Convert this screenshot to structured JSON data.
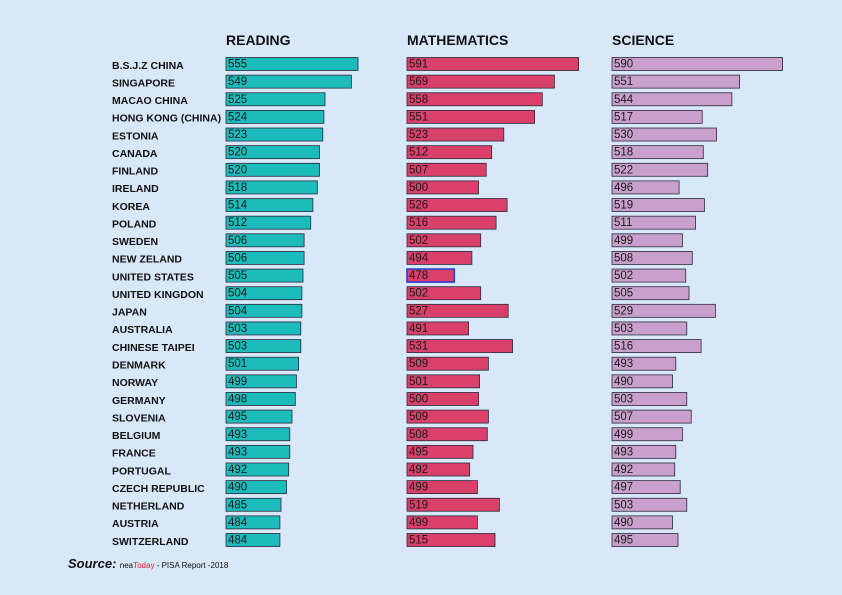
{
  "chart_data": {
    "type": "bar",
    "orientation": "horizontal",
    "categories": [
      "B.S.J.Z CHINA",
      "SINGAPORE",
      "MACAO CHINA",
      "HONG KONG (CHINA)",
      "ESTONIA",
      "CANADA",
      "FINLAND",
      "IRELAND",
      "KOREA",
      "POLAND",
      "SWEDEN",
      "NEW ZELAND",
      "UNITED STATES",
      "UNITED KINGDON",
      "JAPAN",
      "AUSTRALIA",
      "CHINESE TAIPEI",
      "DENMARK",
      "NORWAY",
      "GERMANY",
      "SLOVENIA",
      "BELGIUM",
      "FRANCE",
      "PORTUGAL",
      "CZECH  REPUBLIC",
      "NETHERLAND",
      "AUSTRIA",
      "SWITZERLAND"
    ],
    "series": [
      {
        "name": "READING",
        "color": "#1dbcbc",
        "values": [
          555,
          549,
          525,
          524,
          523,
          520,
          520,
          518,
          514,
          512,
          506,
          506,
          505,
          504,
          504,
          503,
          503,
          501,
          499,
          498,
          495,
          493,
          493,
          492,
          490,
          485,
          484,
          484
        ]
      },
      {
        "name": "MATHEMATICS",
        "color": "#d9406a",
        "values": [
          591,
          569,
          558,
          551,
          523,
          512,
          507,
          500,
          526,
          516,
          502,
          494,
          478,
          502,
          527,
          491,
          531,
          509,
          501,
          500,
          509,
          508,
          495,
          492,
          499,
          519,
          499,
          515
        ],
        "highlight_index": 12
      },
      {
        "name": "SCIENCE",
        "color": "#c9a0cc",
        "values": [
          590,
          551,
          544,
          517,
          530,
          518,
          522,
          496,
          519,
          511,
          499,
          508,
          502,
          505,
          529,
          503,
          516,
          493,
          490,
          503,
          507,
          499,
          493,
          492,
          497,
          503,
          490,
          495
        ]
      }
    ],
    "xlim": [
      435,
      600
    ]
  },
  "source": {
    "label": "Source:",
    "publisher_a": "nea",
    "publisher_b": "Today",
    "text": " - PISA Report -2018"
  }
}
